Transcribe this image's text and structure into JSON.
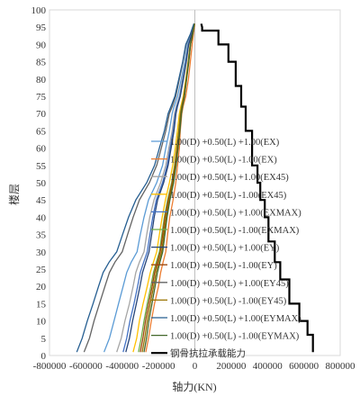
{
  "chart_data": {
    "type": "line",
    "title": "",
    "xlabel": "轴力(KN)",
    "ylabel": "楼层",
    "xlim": [
      -800000,
      800000
    ],
    "ylim": [
      0,
      100
    ],
    "xticks": [
      -800000,
      -600000,
      -400000,
      -200000,
      0,
      200000,
      400000,
      600000,
      800000
    ],
    "yticks": [
      0,
      5,
      10,
      15,
      20,
      25,
      30,
      35,
      40,
      45,
      50,
      55,
      60,
      65,
      70,
      75,
      80,
      85,
      90,
      95,
      100
    ],
    "grid": false,
    "legend_position": "right-inside",
    "series": [
      {
        "name": "1.00(D) +0.50(L) +1.00(EX)",
        "color": "#5b9bd5",
        "x": [
          -500000,
          -470000,
          -445000,
          -420000,
          -395000,
          -375000,
          -350000,
          -318000,
          -300000,
          -280000,
          -255000,
          -210000,
          -178000,
          -160000,
          -140000,
          -125000,
          -115000,
          -95000,
          -75000,
          -55000,
          -40000,
          -20000,
          -10000,
          -5000
        ],
        "y": [
          1,
          5,
          10,
          15,
          20,
          24,
          27,
          30,
          35,
          40,
          45,
          50,
          55,
          60,
          65,
          70,
          72,
          75,
          80,
          85,
          90,
          93,
          95,
          96
        ]
      },
      {
        "name": "1.00(D) +0.50(L) -1.00(EX)",
        "color": "#ed7d31",
        "x": [
          -270000,
          -255000,
          -240000,
          -222000,
          -200000,
          -188000,
          -175000,
          -160000,
          -150000,
          -138000,
          -120000,
          -105000,
          -95000,
          -85000,
          -80000,
          -72000,
          -65000,
          -50000,
          -35000,
          -25000,
          -15000,
          -8000,
          -3000,
          0
        ],
        "y": [
          1,
          5,
          10,
          15,
          20,
          24,
          27,
          30,
          35,
          40,
          45,
          50,
          55,
          60,
          65,
          70,
          72,
          75,
          80,
          85,
          90,
          93,
          95,
          96
        ]
      },
      {
        "name": "1.00(D) +0.50(L) +1.00(EX45)",
        "color": "#a5a5a5",
        "x": [
          -430000,
          -405000,
          -385000,
          -360000,
          -340000,
          -325000,
          -305000,
          -280000,
          -265000,
          -248000,
          -225000,
          -188000,
          -160000,
          -143000,
          -125000,
          -112000,
          -103000,
          -85000,
          -68000,
          -50000,
          -36000,
          -18000,
          -9000,
          -4000
        ],
        "y": [
          1,
          5,
          10,
          15,
          20,
          24,
          27,
          30,
          35,
          40,
          45,
          50,
          55,
          60,
          65,
          70,
          72,
          75,
          80,
          85,
          90,
          93,
          95,
          96
        ]
      },
      {
        "name": "1.00(D) +0.50(L) -1.00(EX45)",
        "color": "#ffc000",
        "x": [
          -340000,
          -320000,
          -305000,
          -285000,
          -262000,
          -245000,
          -228000,
          -210000,
          -195000,
          -180000,
          -162000,
          -140000,
          -122000,
          -108000,
          -96000,
          -85000,
          -78000,
          -64000,
          -50000,
          -37000,
          -26000,
          -13000,
          -6000,
          -2000
        ],
        "y": [
          1,
          5,
          10,
          15,
          20,
          24,
          27,
          30,
          35,
          40,
          45,
          50,
          55,
          60,
          65,
          70,
          72,
          75,
          80,
          85,
          90,
          93,
          95,
          96
        ]
      },
      {
        "name": "1.00(D) +0.50(L) +1.00(EXMAX)",
        "color": "#4472c4",
        "x": [
          -395000,
          -375000,
          -357000,
          -335000,
          -315000,
          -300000,
          -282000,
          -262000,
          -247000,
          -232000,
          -212000,
          -178000,
          -152000,
          -136000,
          -119000,
          -107000,
          -99000,
          -82000,
          -65000,
          -48000,
          -35000,
          -17000,
          -8500,
          -4000
        ],
        "y": [
          1,
          5,
          10,
          15,
          20,
          24,
          27,
          30,
          35,
          40,
          45,
          50,
          55,
          60,
          65,
          70,
          72,
          75,
          80,
          85,
          90,
          93,
          95,
          96
        ]
      },
      {
        "name": "1.00(D) +0.50(L) -1.00(EXMAX)",
        "color": "#70ad47",
        "x": [
          -310000,
          -295000,
          -280000,
          -262000,
          -242000,
          -228000,
          -212000,
          -195000,
          -182000,
          -168000,
          -150000,
          -128000,
          -112000,
          -100000,
          -89000,
          -80000,
          -74000,
          -61000,
          -48000,
          -36000,
          -26000,
          -13000,
          -6000,
          -2000
        ],
        "y": [
          1,
          5,
          10,
          15,
          20,
          24,
          27,
          30,
          35,
          40,
          45,
          50,
          55,
          60,
          65,
          70,
          72,
          75,
          80,
          85,
          90,
          93,
          95,
          96
        ]
      },
      {
        "name": "1.00(D) +0.50(L) +1.00(EY)",
        "color": "#264478",
        "x": [
          -380000,
          -360000,
          -343000,
          -322000,
          -302000,
          -288000,
          -270000,
          -252000,
          -238000,
          -224000,
          -205000,
          -172000,
          -147000,
          -131000,
          -115000,
          -104000,
          -96000,
          -80000,
          -63000,
          -47000,
          -34000,
          -17000,
          -8000,
          -3500
        ],
        "y": [
          1,
          5,
          10,
          15,
          20,
          24,
          27,
          30,
          35,
          40,
          45,
          50,
          55,
          60,
          65,
          70,
          72,
          75,
          80,
          85,
          90,
          93,
          95,
          96
        ]
      },
      {
        "name": "1.00(D) +0.50(L) -1.00(EY)",
        "color": "#9e480e",
        "x": [
          -300000,
          -286000,
          -272000,
          -254000,
          -235000,
          -222000,
          -206000,
          -190000,
          -177000,
          -164000,
          -146000,
          -125000,
          -109000,
          -98000,
          -87000,
          -78000,
          -72000,
          -60000,
          -47000,
          -35000,
          -25000,
          -12500,
          -6000,
          -2000
        ],
        "y": [
          1,
          5,
          10,
          15,
          20,
          24,
          27,
          30,
          35,
          40,
          45,
          50,
          55,
          60,
          65,
          70,
          72,
          75,
          80,
          85,
          90,
          93,
          95,
          96
        ]
      },
      {
        "name": "1.00(D) +0.50(L) +1.00(EY45)",
        "color": "#636363",
        "x": [
          -610000,
          -580000,
          -555000,
          -525000,
          -495000,
          -470000,
          -440000,
          -400000,
          -370000,
          -340000,
          -305000,
          -250000,
          -210000,
          -185000,
          -160000,
          -140000,
          -125000,
          -105000,
          -85000,
          -65000,
          -48000,
          -24000,
          -12000,
          -5000
        ],
        "y": [
          1,
          5,
          10,
          15,
          20,
          24,
          27,
          30,
          35,
          40,
          45,
          50,
          55,
          60,
          65,
          70,
          72,
          75,
          80,
          85,
          90,
          93,
          95,
          96
        ]
      },
      {
        "name": "1.00(D) +0.50(L) -1.00(EY45)",
        "color": "#997300",
        "x": [
          -290000,
          -276000,
          -262000,
          -245000,
          -227000,
          -214000,
          -199000,
          -183000,
          -171000,
          -158000,
          -141000,
          -121000,
          -106000,
          -95000,
          -85000,
          -76000,
          -70000,
          -58000,
          -46000,
          -34000,
          -24000,
          -12000,
          -6000,
          -2000
        ],
        "y": [
          1,
          5,
          10,
          15,
          20,
          24,
          27,
          30,
          35,
          40,
          45,
          50,
          55,
          60,
          65,
          70,
          72,
          75,
          80,
          85,
          90,
          93,
          95,
          96
        ]
      },
      {
        "name": "1.00(D) +0.50(L) +1.00(EYMAX)",
        "color": "#255e91",
        "x": [
          -650000,
          -620000,
          -592000,
          -560000,
          -530000,
          -505000,
          -472000,
          -430000,
          -398000,
          -365000,
          -325000,
          -265000,
          -222000,
          -195000,
          -168000,
          -147000,
          -132000,
          -110000,
          -88000,
          -67000,
          -50000,
          -25000,
          -12000,
          -5000
        ],
        "y": [
          1,
          5,
          10,
          15,
          20,
          24,
          27,
          30,
          35,
          40,
          45,
          50,
          55,
          60,
          65,
          70,
          72,
          75,
          80,
          85,
          90,
          93,
          95,
          96
        ]
      },
      {
        "name": "1.00(D) +0.50(L) -1.00(EYMAX)",
        "color": "#43682b",
        "x": [
          -280000,
          -266000,
          -253000,
          -236000,
          -219000,
          -206000,
          -192000,
          -177000,
          -165000,
          -153000,
          -137000,
          -117000,
          -103000,
          -92000,
          -82000,
          -74000,
          -68000,
          -57000,
          -45000,
          -33000,
          -24000,
          -12000,
          -5500,
          -2000
        ],
        "y": [
          1,
          5,
          10,
          15,
          20,
          24,
          27,
          30,
          35,
          40,
          45,
          50,
          55,
          60,
          65,
          70,
          72,
          75,
          80,
          85,
          90,
          93,
          95,
          96
        ]
      },
      {
        "name": "钢骨抗拉承载能力",
        "color": "#000000",
        "step": true,
        "x": [
          650000,
          650000,
          620000,
          620000,
          575000,
          575000,
          520000,
          520000,
          470000,
          470000,
          440000,
          440000,
          405000,
          405000,
          385000,
          385000,
          360000,
          360000,
          345000,
          345000,
          315000,
          315000,
          280000,
          280000,
          255000,
          255000,
          225000,
          225000,
          185000,
          185000,
          130000,
          130000,
          40000,
          40000,
          35000
        ],
        "y": [
          1,
          6,
          6,
          10,
          10,
          15,
          15,
          22,
          22,
          27,
          27,
          33,
          33,
          40,
          40,
          45,
          45,
          50,
          50,
          55,
          55,
          65,
          65,
          72,
          72,
          78,
          78,
          85,
          85,
          90,
          90,
          94,
          94,
          95,
          96
        ]
      }
    ]
  }
}
